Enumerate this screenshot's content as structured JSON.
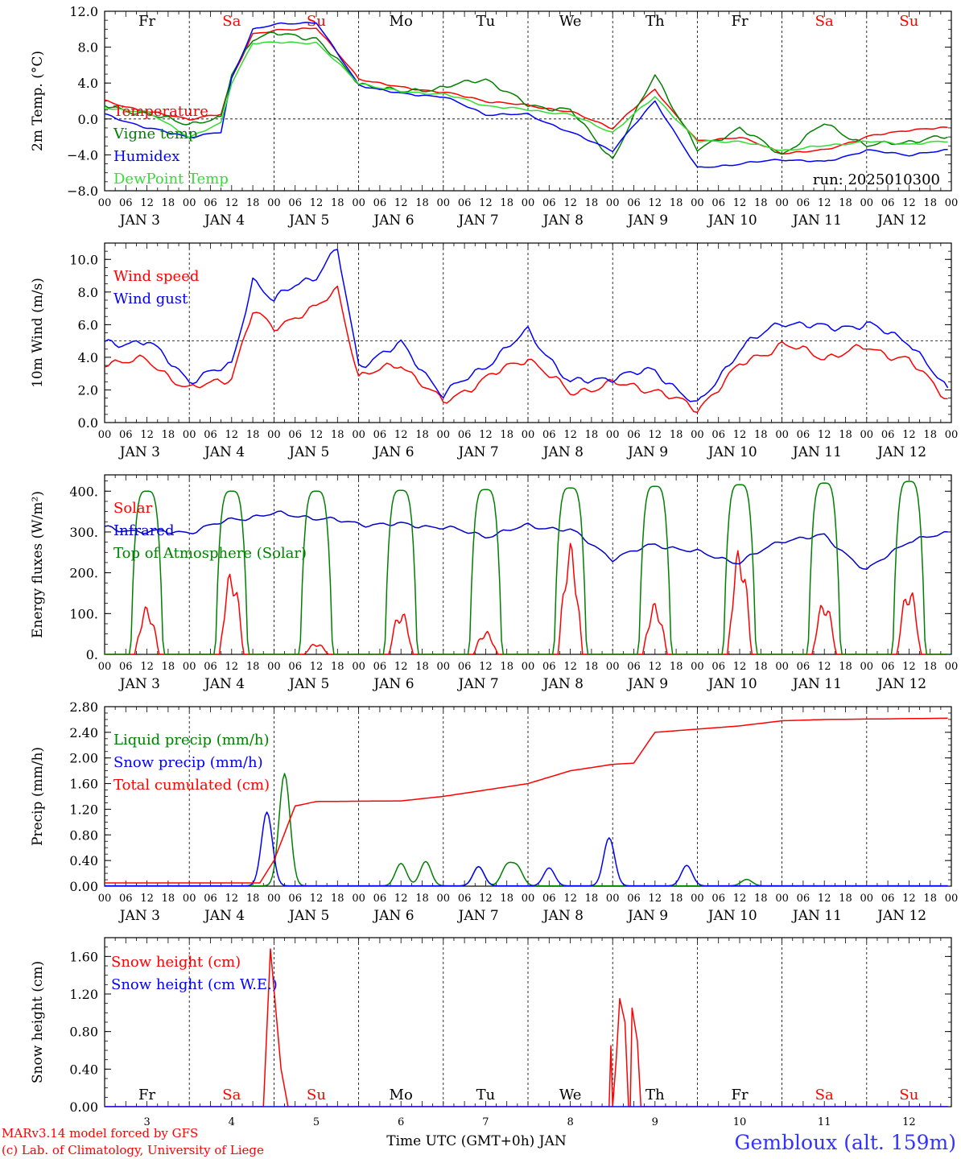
{
  "chart_data": [
    {
      "type": "line",
      "ylabel": "2m Temp. (°C)",
      "ylim": [
        -8,
        12
      ],
      "yticks": [
        "12.0",
        "8.0",
        "4.0",
        "0.0",
        "−4.0",
        "−8.0"
      ],
      "yticks_values": [
        12,
        8,
        4,
        0,
        -4,
        -8
      ],
      "reference_line": 0,
      "annotation": "run: 2025010300",
      "x_hours": [
        0,
        12,
        24,
        33,
        36,
        42,
        48,
        60,
        72,
        84,
        96,
        108,
        120,
        132,
        144,
        156,
        168,
        180,
        192,
        204,
        216,
        228,
        239
      ],
      "series": [
        {
          "name": "Temperature",
          "color": "#ff0000",
          "values": [
            2.0,
            0.8,
            0.0,
            0.5,
            4.5,
            9.5,
            9.8,
            10.2,
            4.5,
            3.5,
            3.0,
            2.0,
            1.5,
            0.8,
            -1.0,
            3.3,
            -2.5,
            -2.0,
            -3.8,
            -3.5,
            -2.0,
            -1.2,
            -1.0
          ]
        },
        {
          "name": "Vigne temp",
          "color": "#008000",
          "values": [
            1.5,
            0.5,
            -0.5,
            0.0,
            5.0,
            9.0,
            9.5,
            9.0,
            4.0,
            3.0,
            3.5,
            4.5,
            1.5,
            1.0,
            -4.5,
            5.0,
            -3.5,
            -1.0,
            -4.0,
            -0.5,
            -3.0,
            -2.5,
            -2.0
          ]
        },
        {
          "name": "Humidex",
          "color": "#0000ff",
          "values": [
            0.5,
            -1.0,
            -2.0,
            -1.5,
            4.5,
            10.0,
            10.5,
            10.8,
            3.8,
            2.8,
            2.5,
            0.5,
            0.5,
            -1.5,
            -3.5,
            2.0,
            -5.5,
            -5.0,
            -4.5,
            -4.8,
            -3.5,
            -4.0,
            -3.5
          ]
        },
        {
          "name": "DewPoint Temp",
          "color": "#33dd33",
          "values": [
            1.2,
            0.8,
            -2.0,
            -0.5,
            4.0,
            8.5,
            8.5,
            8.5,
            4.0,
            3.0,
            2.8,
            1.5,
            1.0,
            0.5,
            -1.5,
            2.5,
            -2.5,
            -2.5,
            -3.5,
            -3.0,
            -2.5,
            -2.8,
            -2.5
          ]
        }
      ]
    },
    {
      "type": "line",
      "ylabel": "10m Wind (m/s)",
      "ylim": [
        0,
        11
      ],
      "yticks": [
        "10.0",
        "8.0",
        "6.0",
        "4.0",
        "2.0",
        "0.0"
      ],
      "yticks_values": [
        10,
        8,
        6,
        4,
        2,
        0
      ],
      "reference_line": 5,
      "x_hours": [
        0,
        12,
        24,
        36,
        42,
        48,
        54,
        60,
        66,
        72,
        84,
        96,
        108,
        120,
        132,
        144,
        156,
        168,
        180,
        192,
        204,
        216,
        228,
        239
      ],
      "series": [
        {
          "name": "Wind speed",
          "color": "#ff0000",
          "values": [
            3.7,
            3.8,
            2.0,
            2.8,
            6.8,
            5.8,
            6.5,
            7.0,
            8.2,
            2.8,
            3.6,
            1.2,
            2.7,
            4.0,
            1.8,
            2.4,
            2.0,
            0.8,
            3.5,
            4.8,
            4.0,
            4.6,
            3.8,
            1.5
          ]
        },
        {
          "name": "Wind gust",
          "color": "#0000ff",
          "values": [
            4.8,
            5.0,
            2.6,
            3.5,
            8.8,
            7.4,
            8.5,
            9.0,
            10.6,
            3.5,
            4.8,
            1.7,
            3.5,
            5.6,
            2.4,
            2.8,
            3.2,
            1.0,
            4.5,
            6.2,
            5.8,
            6.0,
            5.0,
            1.9
          ]
        }
      ]
    },
    {
      "type": "line",
      "ylabel": "Energy fluxes (W/m²)",
      "ylim": [
        0,
        440
      ],
      "yticks": [
        "400.",
        "300.",
        "200.",
        "100.",
        "0."
      ],
      "yticks_values": [
        400,
        300,
        200,
        100,
        0
      ],
      "x_hours": [
        0,
        12,
        24,
        36,
        48,
        60,
        72,
        84,
        96,
        108,
        120,
        132,
        144,
        156,
        168,
        180,
        192,
        204,
        216,
        228,
        239
      ],
      "series": [
        {
          "name": "Solar",
          "color": "#ff0000",
          "peaks": [
            120,
            210,
            28,
            110,
            58,
            275,
            128,
            265,
            135,
            170
          ]
        },
        {
          "name": "Infrared",
          "color": "#0000cc",
          "values": [
            310,
            300,
            300,
            330,
            345,
            335,
            320,
            318,
            312,
            290,
            315,
            305,
            235,
            270,
            250,
            225,
            280,
            290,
            205,
            280,
            295
          ]
        },
        {
          "name": "Top of Atmosphere (Solar)",
          "color": "#008000",
          "peaks": [
            400,
            400,
            400,
            402,
            404,
            408,
            412,
            416,
            420,
            424
          ]
        }
      ]
    },
    {
      "type": "line",
      "ylabel": "Precip (mm/h)",
      "ylim": [
        0,
        2.8
      ],
      "yticks": [
        "2.80",
        "2.40",
        "2.00",
        "1.60",
        "1.20",
        "0.80",
        "0.40",
        "0.00"
      ],
      "yticks_values": [
        2.8,
        2.4,
        2.0,
        1.6,
        1.2,
        0.8,
        0.4,
        0.0
      ],
      "x_hours": [
        0,
        24,
        44,
        48,
        54,
        60,
        84,
        96,
        120,
        132,
        144,
        150,
        156,
        168,
        180,
        192,
        204,
        239
      ],
      "series": [
        {
          "name": "Liquid precip (mm/h)",
          "color": "#008000",
          "events": [
            {
              "x": 51,
              "y": 1.75
            },
            {
              "x": 84,
              "y": 0.35
            },
            {
              "x": 91,
              "y": 0.38
            },
            {
              "x": 106,
              "y": 0.3
            },
            {
              "x": 114,
              "y": 0.3
            },
            {
              "x": 117,
              "y": 0.28
            },
            {
              "x": 182,
              "y": 0.1
            }
          ]
        },
        {
          "name": "Snow precip (mm/h)",
          "color": "#0000ff",
          "events": [
            {
              "x": 46,
              "y": 1.15
            },
            {
              "x": 106,
              "y": 0.3
            },
            {
              "x": 126,
              "y": 0.28
            },
            {
              "x": 143,
              "y": 0.75
            },
            {
              "x": 165,
              "y": 0.32
            }
          ]
        },
        {
          "name": "Total cumulated (cm)",
          "color": "#ff0000",
          "values": [
            0.05,
            0.05,
            0.05,
            0.4,
            1.25,
            1.32,
            1.33,
            1.4,
            1.6,
            1.8,
            1.9,
            1.92,
            2.4,
            2.45,
            2.5,
            2.58,
            2.6,
            2.62
          ]
        }
      ]
    },
    {
      "type": "line",
      "ylabel": "Snow height (cm)",
      "ylim": [
        0,
        1.8
      ],
      "yticks": [
        "1.60",
        "1.20",
        "0.80",
        "0.40",
        "0.00"
      ],
      "yticks_values": [
        1.6,
        1.2,
        0.8,
        0.4,
        0.0
      ],
      "series": [
        {
          "name": "Snow height (cm)",
          "color": "#ff0000",
          "points": [
            [
              0,
              0
            ],
            [
              45,
              0
            ],
            [
              47,
              1.68
            ],
            [
              50,
              0.4
            ],
            [
              52,
              0
            ],
            [
              143,
              0
            ],
            [
              143.5,
              0.65
            ],
            [
              144,
              0
            ],
            [
              145,
              0.5
            ],
            [
              146,
              1.15
            ],
            [
              147.5,
              0.9
            ],
            [
              148.5,
              0
            ],
            [
              149,
              0
            ],
            [
              149.5,
              1.05
            ],
            [
              151,
              0.7
            ],
            [
              152,
              0
            ],
            [
              239,
              0
            ]
          ]
        },
        {
          "name": "Snow height (cm W.E.)",
          "color": "#0000ff",
          "points": [
            [
              0,
              0
            ],
            [
              239,
              0
            ]
          ]
        }
      ],
      "xlabel": "Time UTC (GMT+0h) JAN",
      "day_numbers": [
        "3",
        "4",
        "5",
        "6",
        "7",
        "8",
        "9",
        "10",
        "11",
        "12"
      ]
    }
  ],
  "days": [
    {
      "abbr": "Fr",
      "color": "#000000"
    },
    {
      "abbr": "Sa",
      "color": "#ff0000"
    },
    {
      "abbr": "Su",
      "color": "#ff0000"
    },
    {
      "abbr": "Mo",
      "color": "#000000"
    },
    {
      "abbr": "Tu",
      "color": "#000000"
    },
    {
      "abbr": "We",
      "color": "#000000"
    },
    {
      "abbr": "Th",
      "color": "#000000"
    },
    {
      "abbr": "Fr",
      "color": "#000000"
    },
    {
      "abbr": "Sa",
      "color": "#ff0000"
    },
    {
      "abbr": "Su",
      "color": "#ff0000"
    }
  ],
  "hour_ticks": [
    "00",
    "06",
    "12",
    "18"
  ],
  "hour_end": "00",
  "date_labels": [
    "JAN  3",
    "JAN  4",
    "JAN  5",
    "JAN  6",
    "JAN  7",
    "JAN  8",
    "JAN  9",
    "JAN 10",
    "JAN 11",
    "JAN 12"
  ],
  "footer": {
    "credit_line1": "MARv3.14 model forced by GFS",
    "credit_line2": "(c) Lab. of Climatology, University of Liege",
    "location": "Gembloux (alt. 159m)"
  }
}
